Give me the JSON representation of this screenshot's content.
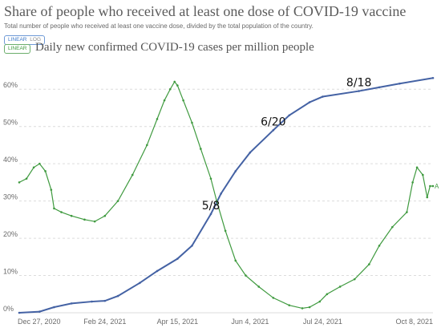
{
  "header": {
    "title": "Share of people who received at least one dose of COVID-19 vaccine",
    "subtitle": "Total number of people who received at least one vaccine dose, divided by the total population of the country."
  },
  "controls": {
    "blue_linear": "LINEAR",
    "blue_log": "LOG",
    "green_linear": "LINEAR"
  },
  "overlay_title": "Daily new confirmed COVID-19 cases per million people",
  "colors": {
    "vaccine": "#4462a4",
    "cases": "#3f9a3f",
    "grid": "#dcdcdc",
    "axis_text": "#6a6a6a"
  },
  "chart_data": {
    "type": "line",
    "x_range": [
      "2020-12-27",
      "2021-10-08"
    ],
    "ylim": [
      0,
      0.65
    ],
    "y_ticks": [
      {
        "value": 0,
        "label": "0%"
      },
      {
        "value": 0.1,
        "label": "10%"
      },
      {
        "value": 0.2,
        "label": "20%"
      },
      {
        "value": 0.3,
        "label": "30%"
      },
      {
        "value": 0.4,
        "label": "40%"
      },
      {
        "value": 0.5,
        "label": "50%"
      },
      {
        "value": 0.6,
        "label": "60%"
      }
    ],
    "x_ticks": [
      {
        "date": "2020-12-27",
        "label": "Dec 27, 2020"
      },
      {
        "date": "2021-02-24",
        "label": "Feb 24, 2021"
      },
      {
        "date": "2021-04-15",
        "label": "Apr 15, 2021"
      },
      {
        "date": "2021-06-04",
        "label": "Jun 4, 2021"
      },
      {
        "date": "2021-07-24",
        "label": "Jul 24, 2021"
      },
      {
        "date": "2021-10-08",
        "label": "Oct 8, 2021"
      }
    ],
    "series": [
      {
        "key": "vaccine",
        "points": [
          [
            "2020-12-27",
            0.0
          ],
          [
            "2021-01-10",
            0.003
          ],
          [
            "2021-01-20",
            0.015
          ],
          [
            "2021-02-01",
            0.025
          ],
          [
            "2021-02-15",
            0.03
          ],
          [
            "2021-02-24",
            0.032
          ],
          [
            "2021-03-05",
            0.045
          ],
          [
            "2021-03-20",
            0.08
          ],
          [
            "2021-04-01",
            0.112
          ],
          [
            "2021-04-15",
            0.145
          ],
          [
            "2021-04-25",
            0.18
          ],
          [
            "2021-05-08",
            0.265
          ],
          [
            "2021-05-15",
            0.32
          ],
          [
            "2021-05-25",
            0.38
          ],
          [
            "2021-06-04",
            0.43
          ],
          [
            "2021-06-20",
            0.49
          ],
          [
            "2021-07-01",
            0.53
          ],
          [
            "2021-07-15",
            0.565
          ],
          [
            "2021-07-24",
            0.58
          ],
          [
            "2021-08-18",
            0.595
          ],
          [
            "2021-09-01",
            0.605
          ],
          [
            "2021-09-15",
            0.615
          ],
          [
            "2021-10-08",
            0.63
          ]
        ]
      },
      {
        "key": "cases",
        "end_label": "A",
        "points": [
          [
            "2020-12-27",
            0.35
          ],
          [
            "2021-01-01",
            0.36
          ],
          [
            "2021-01-06",
            0.39
          ],
          [
            "2021-01-10",
            0.4
          ],
          [
            "2021-01-14",
            0.38
          ],
          [
            "2021-01-18",
            0.33
          ],
          [
            "2021-01-20",
            0.28
          ],
          [
            "2021-01-25",
            0.27
          ],
          [
            "2021-02-01",
            0.26
          ],
          [
            "2021-02-10",
            0.25
          ],
          [
            "2021-02-17",
            0.245
          ],
          [
            "2021-02-24",
            0.26
          ],
          [
            "2021-03-05",
            0.3
          ],
          [
            "2021-03-15",
            0.37
          ],
          [
            "2021-03-25",
            0.45
          ],
          [
            "2021-04-01",
            0.52
          ],
          [
            "2021-04-06",
            0.57
          ],
          [
            "2021-04-10",
            0.6
          ],
          [
            "2021-04-13",
            0.62
          ],
          [
            "2021-04-15",
            0.61
          ],
          [
            "2021-04-19",
            0.57
          ],
          [
            "2021-04-25",
            0.51
          ],
          [
            "2021-05-01",
            0.44
          ],
          [
            "2021-05-08",
            0.36
          ],
          [
            "2021-05-12",
            0.3
          ],
          [
            "2021-05-18",
            0.22
          ],
          [
            "2021-05-25",
            0.14
          ],
          [
            "2021-06-01",
            0.1
          ],
          [
            "2021-06-10",
            0.07
          ],
          [
            "2021-06-20",
            0.04
          ],
          [
            "2021-07-01",
            0.02
          ],
          [
            "2021-07-10",
            0.012
          ],
          [
            "2021-07-15",
            0.015
          ],
          [
            "2021-07-22",
            0.03
          ],
          [
            "2021-07-27",
            0.05
          ],
          [
            "2021-08-05",
            0.07
          ],
          [
            "2021-08-15",
            0.09
          ],
          [
            "2021-08-25",
            0.13
          ],
          [
            "2021-09-01",
            0.18
          ],
          [
            "2021-09-10",
            0.23
          ],
          [
            "2021-09-20",
            0.27
          ],
          [
            "2021-09-24",
            0.35
          ],
          [
            "2021-09-27",
            0.39
          ],
          [
            "2021-10-01",
            0.37
          ],
          [
            "2021-10-04",
            0.31
          ],
          [
            "2021-10-06",
            0.34
          ],
          [
            "2021-10-08",
            0.34
          ]
        ]
      }
    ],
    "annotations": [
      {
        "text": "5/8",
        "date": "2021-05-08"
      },
      {
        "text": "6/20",
        "date": "2021-06-20"
      },
      {
        "text": "8/18",
        "date": "2021-08-18"
      }
    ]
  }
}
